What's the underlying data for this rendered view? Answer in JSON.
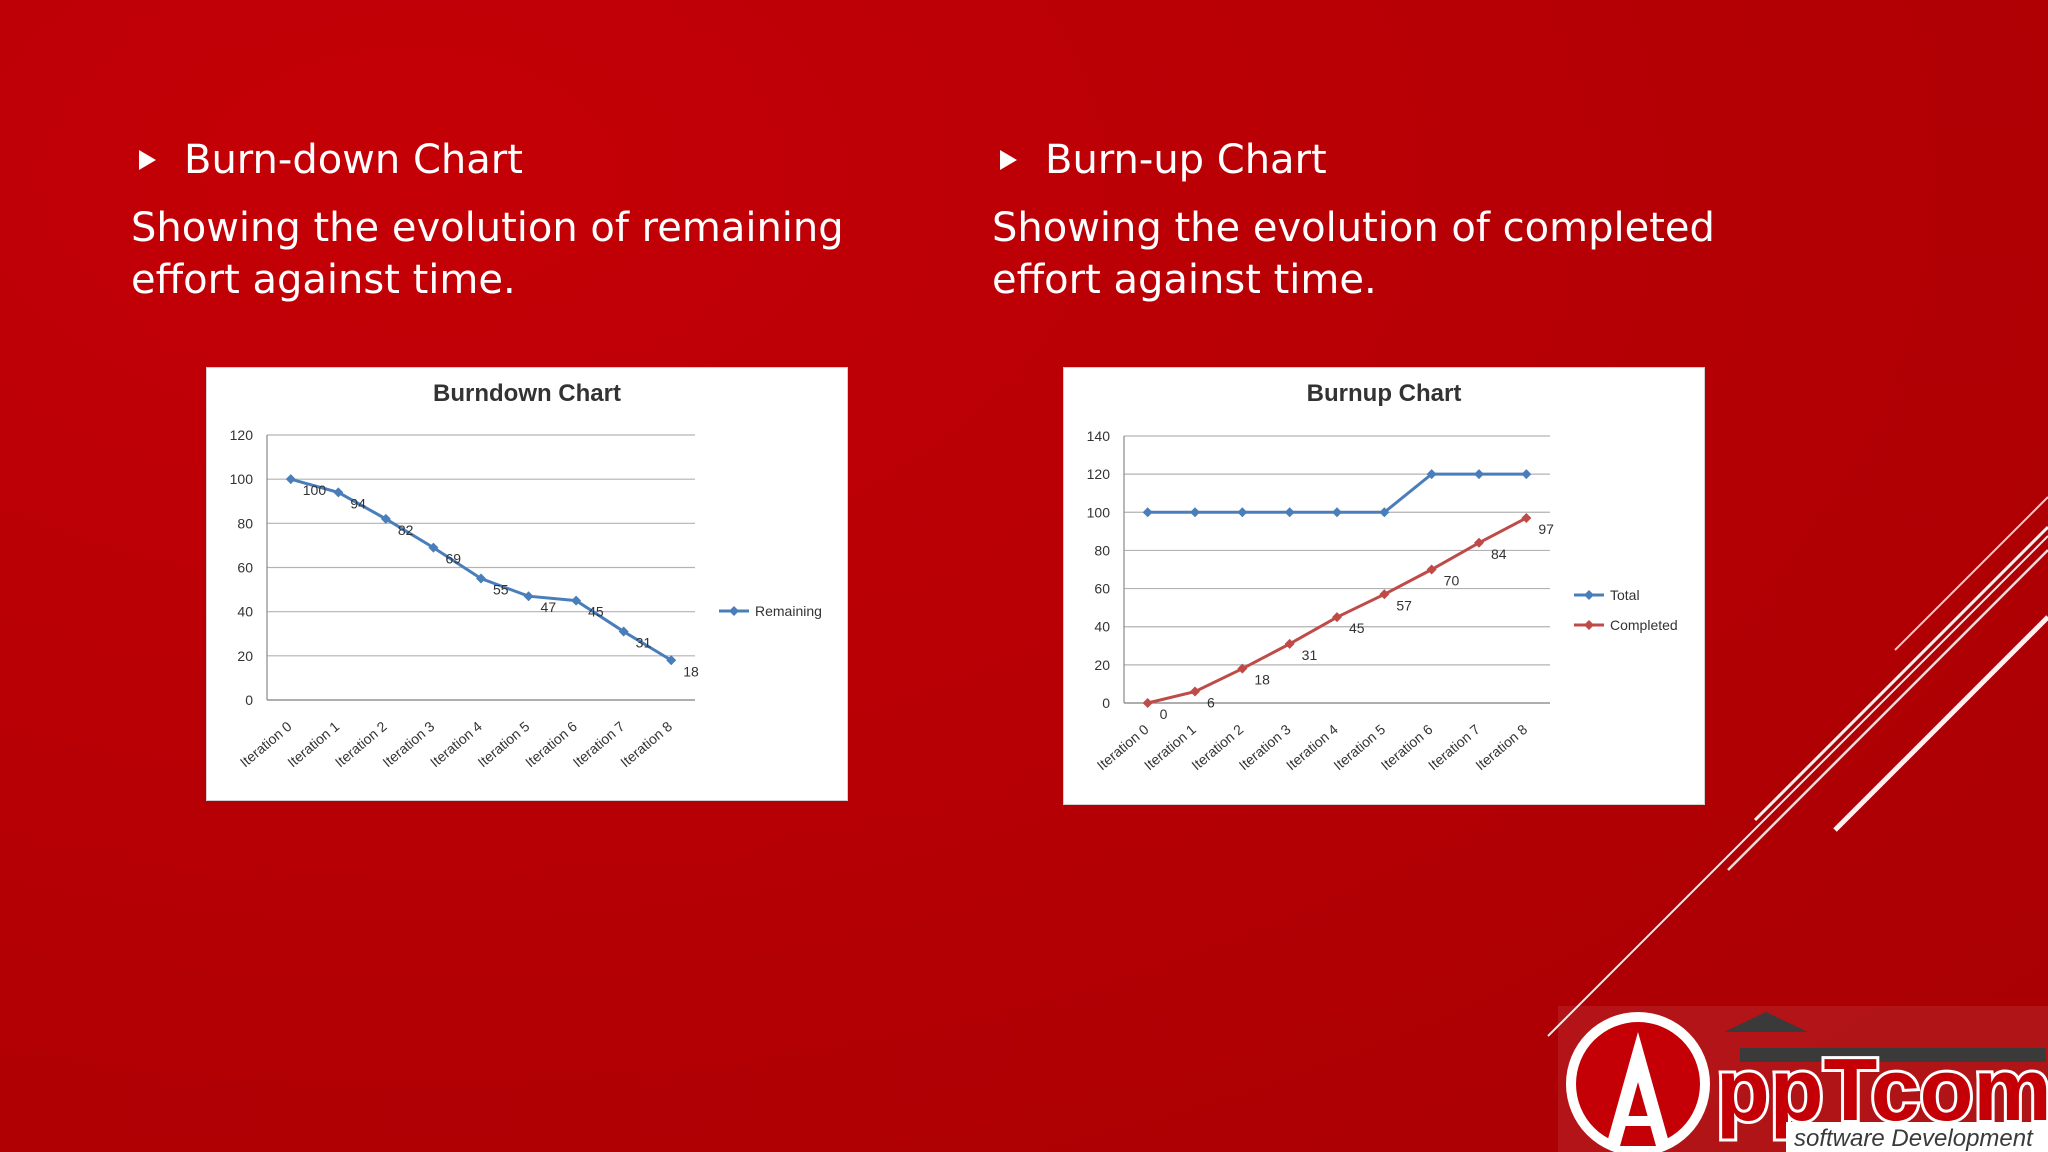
{
  "left": {
    "heading": "Burn-down Chart",
    "description": "Showing the evolution of remaining effort against time."
  },
  "right": {
    "heading": "Burn-up Chart",
    "description": "Showing the evolution of completed effort against time."
  },
  "logo": {
    "text": "ppTcom",
    "tagline": "software Development"
  },
  "colors": {
    "background": "#b70005",
    "blue": "#4a7ebb",
    "red": "#be4b48"
  },
  "chart_data": [
    {
      "type": "line",
      "title": "Burndown Chart",
      "categories": [
        "Iteration 0",
        "Iteration 1",
        "Iteration 2",
        "Iteration 3",
        "Iteration 4",
        "Iteration 5",
        "Iteration 6",
        "Iteration 7",
        "Iteration 8"
      ],
      "series": [
        {
          "name": "Remaining",
          "values": [
            100,
            94,
            82,
            69,
            55,
            47,
            45,
            31,
            18
          ],
          "color": "#4a7ebb"
        }
      ],
      "ylim": [
        0,
        120
      ],
      "yticks": [
        0,
        20,
        40,
        60,
        80,
        100,
        120
      ],
      "grid": true,
      "legend": "right",
      "data_labels": [
        "100",
        "94",
        "82",
        "69",
        "55",
        "47",
        "45",
        "31",
        "18"
      ]
    },
    {
      "type": "line",
      "title": "Burnup Chart",
      "categories": [
        "Iteration 0",
        "Iteration 1",
        "Iteration 2",
        "Iteration 3",
        "Iteration 4",
        "Iteration 5",
        "Iteration 6",
        "Iteration 7",
        "Iteration 8"
      ],
      "series": [
        {
          "name": "Total",
          "values": [
            100,
            100,
            100,
            100,
            100,
            100,
            120,
            120,
            120
          ],
          "color": "#4a7ebb"
        },
        {
          "name": "Completed",
          "values": [
            0,
            6,
            18,
            31,
            45,
            57,
            70,
            84,
            97
          ],
          "color": "#be4b48"
        }
      ],
      "ylim": [
        0,
        140
      ],
      "yticks": [
        0,
        20,
        40,
        60,
        80,
        100,
        120,
        140
      ],
      "grid": true,
      "legend": "right",
      "data_labels": [
        "0",
        "6",
        "18",
        "31",
        "45",
        "57",
        "70",
        "84",
        "97"
      ]
    }
  ]
}
